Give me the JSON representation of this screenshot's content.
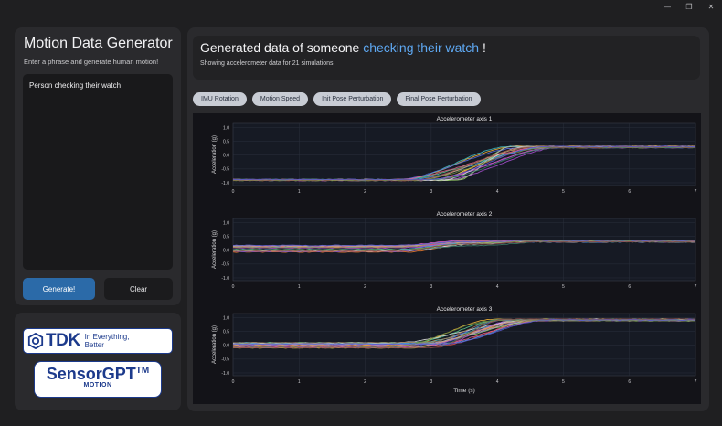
{
  "sidebar": {
    "title": "Motion Data Generator",
    "subtitle": "Enter a phrase and generate human motion!",
    "input_value": "Person checking their watch",
    "generate_label": "Generate!",
    "clear_label": "Clear"
  },
  "logos": {
    "tdk_word": "TDK",
    "tdk_tagline_1": "In Everything,",
    "tdk_tagline_2": "Better",
    "sensorgpt_name": "SensorGPT",
    "sensorgpt_tm": "TM",
    "sensorgpt_sub": "MOTION"
  },
  "header": {
    "title_prefix": "Generated data of someone ",
    "title_highlight": "checking their watch",
    "title_suffix": " !",
    "subtitle": "Showing accelerometer data for 21 simulations."
  },
  "tabs": [
    {
      "label": "IMU Rotation"
    },
    {
      "label": "Motion Speed"
    },
    {
      "label": "Init Pose Perturbation"
    },
    {
      "label": "Final Pose Perturbation"
    }
  ],
  "colors": {
    "accent": "#5ea8f2",
    "button_primary": "#2b6aa8",
    "series": [
      "#e8483c",
      "#f07d2e",
      "#f1b43a",
      "#e6d94f",
      "#9ed56a",
      "#57c98c",
      "#3fb8c2",
      "#4a9be3",
      "#5b6ee0",
      "#7a52d8",
      "#a64fd0",
      "#d056b6",
      "#e25b8a",
      "#b0b0b0",
      "#d8d8d8",
      "#9b7b5a",
      "#c7a27a",
      "#6c8b3f",
      "#3f7f6c",
      "#8a4a4a",
      "#5a5ad0"
    ]
  },
  "chart_data": [
    {
      "type": "line",
      "title": "Accelerometer axis 1",
      "xlabel": "",
      "ylabel": "Acceleration (g)",
      "xlim": [
        0,
        7
      ],
      "ylim": [
        -1.1,
        1.15
      ],
      "xticks": [
        "0",
        "1",
        "2",
        "3",
        "4",
        "5",
        "6",
        "7"
      ],
      "yticks": [
        "1.0",
        "0.5",
        "0.0",
        "-0.5",
        "-1.0"
      ],
      "num_series": 21,
      "series_pattern": {
        "start": -0.9,
        "end": 0.3,
        "transition_start": [
          2.4,
          3.4
        ],
        "transition_end": [
          4.2,
          5.0
        ],
        "spread": 0.05
      },
      "grid": true
    },
    {
      "type": "line",
      "title": "Accelerometer axis 2",
      "xlabel": "",
      "ylabel": "Acceleration (g)",
      "xlim": [
        0,
        7
      ],
      "ylim": [
        -1.1,
        1.15
      ],
      "xticks": [
        "0",
        "1",
        "2",
        "3",
        "4",
        "5",
        "6",
        "7"
      ],
      "yticks": [
        "1.0",
        "0.5",
        "0.0",
        "-0.5",
        "-1.0"
      ],
      "num_series": 21,
      "series_pattern": {
        "start": 0.05,
        "end": 0.33,
        "start_spread": 0.25,
        "bump_peak": 0.55,
        "bump_at": 3.3,
        "transition_start": [
          2.2,
          3.0
        ],
        "transition_end": [
          4.0,
          4.8
        ],
        "spread": 0.05
      },
      "grid": true
    },
    {
      "type": "line",
      "title": "Accelerometer axis 3",
      "xlabel": "Time (s)",
      "ylabel": "Acceleration (g)",
      "xlim": [
        0,
        7
      ],
      "ylim": [
        -1.1,
        1.15
      ],
      "xticks": [
        "0",
        "1",
        "2",
        "3",
        "4",
        "5",
        "6",
        "7"
      ],
      "yticks": [
        "1.0",
        "0.5",
        "0.0",
        "-0.5",
        "-1.0"
      ],
      "num_series": 21,
      "series_pattern": {
        "start": 0.0,
        "end": 0.92,
        "start_spread": 0.2,
        "transition_start": [
          2.4,
          3.3
        ],
        "transition_end": [
          3.9,
          4.8
        ],
        "spread": 0.05
      },
      "grid": true
    }
  ]
}
